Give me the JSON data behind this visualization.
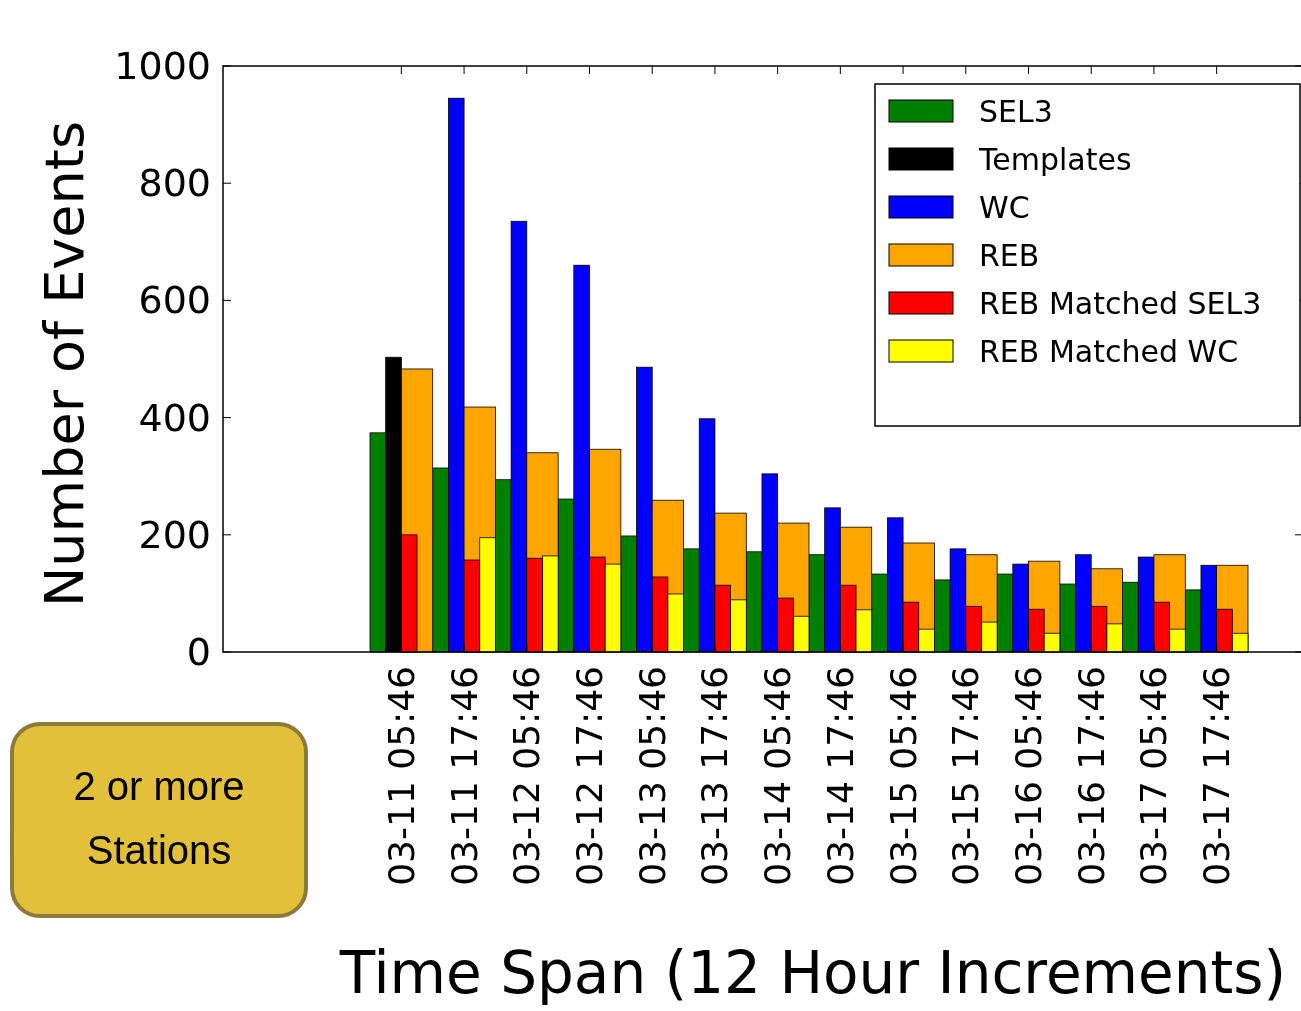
{
  "chart_data": {
    "type": "bar",
    "xlabel": "Time Span (12 Hour Increments)",
    "ylabel": "Number of Events",
    "categories": [
      "03-11 05:46",
      "03-11 17:46",
      "03-12 05:46",
      "03-12 17:46",
      "03-13 05:46",
      "03-13 17:46",
      "03-14 05:46",
      "03-14 17:46",
      "03-15 05:46",
      "03-15 17:46",
      "03-16 05:46",
      "03-16 17:46",
      "03-17 05:46",
      "03-17 17:46"
    ],
    "series": [
      {
        "name": "SEL3",
        "color": "#008000",
        "values": [
          374,
          314,
          294,
          261,
          198,
          176,
          171,
          166,
          133,
          123,
          133,
          116,
          119,
          106
        ]
      },
      {
        "name": "Templates",
        "color": "#000000",
        "values": [
          503,
          null,
          null,
          null,
          null,
          null,
          null,
          null,
          null,
          null,
          null,
          null,
          null,
          null
        ]
      },
      {
        "name": "WC",
        "color": "#0000ff",
        "values": [
          null,
          945,
          735,
          660,
          486,
          398,
          304,
          246,
          229,
          176,
          150,
          166,
          162,
          148
        ]
      },
      {
        "name": "REB",
        "color": "#ffa500",
        "values": [
          483,
          418,
          340,
          346,
          259,
          237,
          220,
          213,
          186,
          166,
          155,
          142,
          166,
          148
        ]
      },
      {
        "name": "REB Matched SEL3",
        "color": "#ff0000",
        "values": [
          200,
          157,
          160,
          162,
          128,
          114,
          92,
          114,
          85,
          78,
          73,
          78,
          85,
          73
        ]
      },
      {
        "name": "REB Matched WC",
        "color": "#ffff00",
        "values": [
          null,
          195,
          164,
          150,
          99,
          89,
          61,
          72,
          39,
          51,
          32,
          48,
          39,
          32
        ]
      }
    ],
    "ylim": [
      0,
      1000
    ],
    "yticks": [
      0,
      200,
      400,
      600,
      800,
      1000
    ],
    "grid": false,
    "legend": "top right",
    "annotations": [
      "2 or more Stations"
    ]
  }
}
